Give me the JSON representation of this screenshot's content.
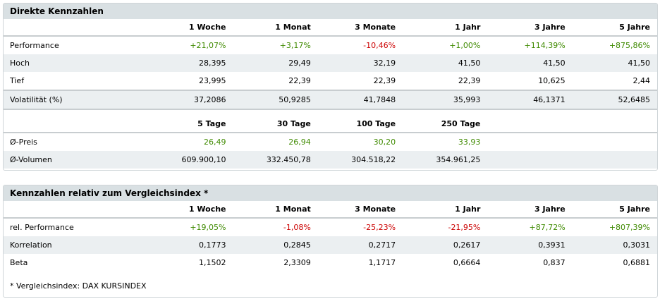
{
  "colors": {
    "positive": "#3f8a00",
    "negative": "#cc0000",
    "header_bg": "#d9e0e3",
    "row_alt": "#ebeff1"
  },
  "direct": {
    "title": "Direkte Kennzahlen",
    "columns": [
      "1 Woche",
      "1 Monat",
      "3 Monate",
      "1 Jahr",
      "3 Jahre",
      "5 Jahre"
    ],
    "rows": [
      {
        "label": "Performance",
        "values": [
          "+21,07%",
          "+3,17%",
          "-10,46%",
          "+1,00%",
          "+114,39%",
          "+875,86%"
        ],
        "signs": [
          "pos",
          "pos",
          "neg",
          "pos",
          "pos",
          "pos"
        ]
      },
      {
        "label": "Hoch",
        "values": [
          "28,395",
          "29,49",
          "32,19",
          "41,50",
          "41,50",
          "41,50"
        ]
      },
      {
        "label": "Tief",
        "values": [
          "23,995",
          "22,39",
          "22,39",
          "22,39",
          "10,625",
          "2,44"
        ]
      },
      {
        "label": "Volatilität (%)",
        "values": [
          "37,2086",
          "50,9285",
          "41,7848",
          "35,993",
          "46,1371",
          "52,6485"
        ]
      }
    ],
    "avg_columns": [
      "5 Tage",
      "30 Tage",
      "100 Tage",
      "250 Tage"
    ],
    "avg_rows": [
      {
        "label": "Ø-Preis",
        "values": [
          "26,49",
          "26,94",
          "30,20",
          "33,93"
        ],
        "signs": [
          "pos",
          "pos",
          "pos",
          "pos"
        ]
      },
      {
        "label": "Ø-Volumen",
        "values": [
          "609.900,10",
          "332.450,78",
          "304.518,22",
          "354.961,25"
        ]
      }
    ]
  },
  "relative": {
    "title": "Kennzahlen relativ zum Vergleichsindex *",
    "columns": [
      "1 Woche",
      "1 Monat",
      "3 Monate",
      "1 Jahr",
      "3 Jahre",
      "5 Jahre"
    ],
    "rows": [
      {
        "label": "rel. Performance",
        "values": [
          "+19,05%",
          "-1,08%",
          "-25,23%",
          "-21,95%",
          "+87,72%",
          "+807,39%"
        ],
        "signs": [
          "pos",
          "neg",
          "neg",
          "neg",
          "pos",
          "pos"
        ]
      },
      {
        "label": "Korrelation",
        "values": [
          "0,1773",
          "0,2845",
          "0,2717",
          "0,2617",
          "0,3931",
          "0,3031"
        ]
      },
      {
        "label": "Beta",
        "values": [
          "1,1502",
          "2,3309",
          "1,1717",
          "0,6664",
          "0,837",
          "0,6881"
        ]
      }
    ],
    "footnote": "* Vergleichsindex: DAX KURSINDEX"
  }
}
